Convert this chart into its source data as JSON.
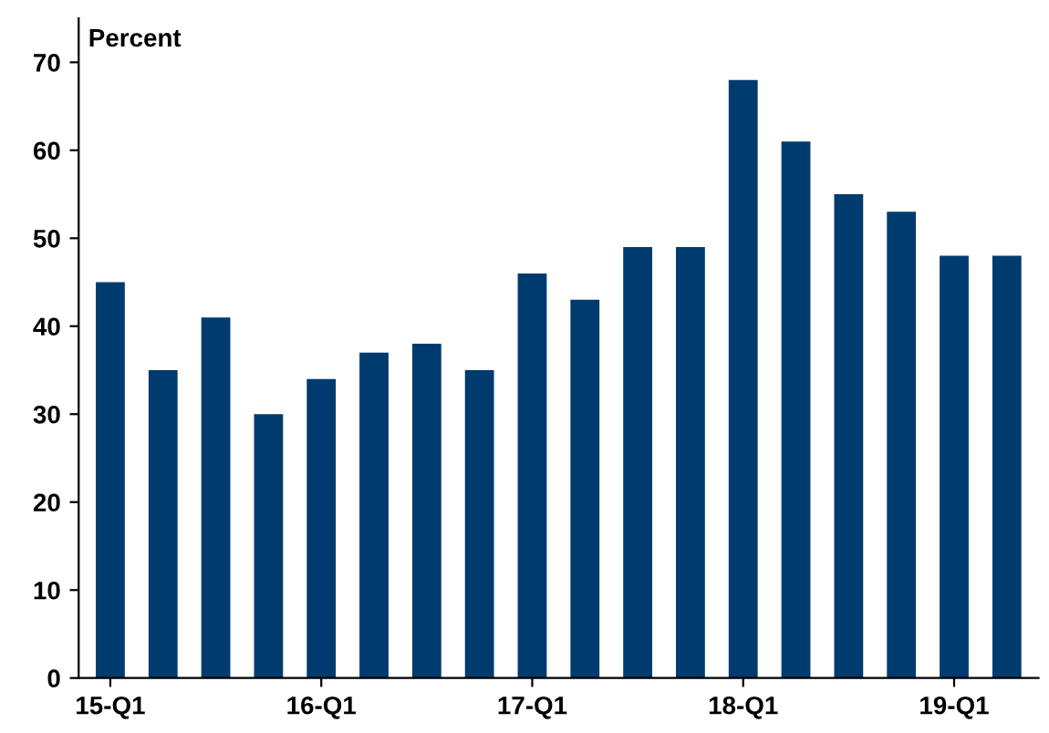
{
  "chart_data": {
    "type": "bar",
    "ylabel": "Percent",
    "categories": [
      "15-Q1",
      null,
      null,
      null,
      "16-Q1",
      null,
      null,
      null,
      "17-Q1",
      null,
      null,
      null,
      "18-Q1",
      null,
      null,
      null,
      "19-Q1",
      null
    ],
    "values": [
      45,
      35,
      41,
      30,
      34,
      37,
      38,
      35,
      46,
      43,
      49,
      49,
      68,
      61,
      55,
      53,
      48,
      48
    ],
    "color": "#003b6f",
    "ylim": [
      0,
      75
    ],
    "yticks": [
      0,
      10,
      20,
      30,
      40,
      50,
      60,
      70
    ],
    "grid": false,
    "legend": false
  }
}
